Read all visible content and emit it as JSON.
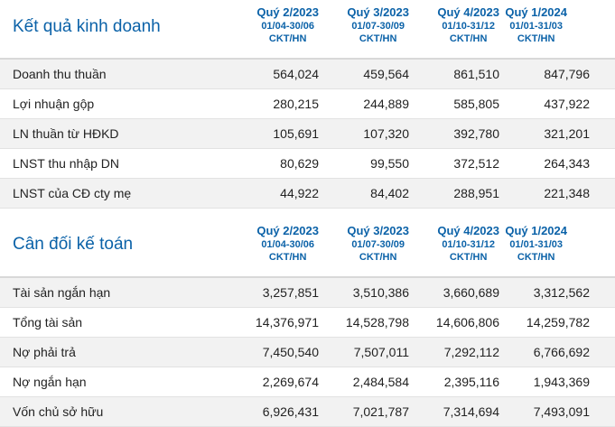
{
  "business": {
    "title": "Kết quả kinh doanh",
    "columns": [
      {
        "quarter": "Quý 2/2023",
        "range": "01/04-30/06",
        "unit": "CKT/HN"
      },
      {
        "quarter": "Quý 3/2023",
        "range": "01/07-30/09",
        "unit": "CKT/HN"
      },
      {
        "quarter": "Quý 4/2023",
        "range": "01/10-31/12",
        "unit": "CKT/HN"
      },
      {
        "quarter": "Quý 1/2024",
        "range": "01/01-31/03",
        "unit": "CKT/HN"
      }
    ],
    "rows": [
      {
        "label": "Doanh thu thuần",
        "values": [
          "564,024",
          "459,564",
          "861,510",
          "847,796"
        ]
      },
      {
        "label": "Lợi nhuận gộp",
        "values": [
          "280,215",
          "244,889",
          "585,805",
          "437,922"
        ]
      },
      {
        "label": "LN thuần từ HĐKD",
        "values": [
          "105,691",
          "107,320",
          "392,780",
          "321,201"
        ]
      },
      {
        "label": "LNST thu nhập DN",
        "values": [
          "80,629",
          "99,550",
          "372,512",
          "264,343"
        ]
      },
      {
        "label": "LNST của CĐ cty mẹ",
        "values": [
          "44,922",
          "84,402",
          "288,951",
          "221,348"
        ]
      }
    ]
  },
  "balance": {
    "title": "Cân đối kế toán",
    "columns": [
      {
        "quarter": "Quý 2/2023",
        "range": "01/04-30/06",
        "unit": "CKT/HN"
      },
      {
        "quarter": "Quý 3/2023",
        "range": "01/07-30/09",
        "unit": "CKT/HN"
      },
      {
        "quarter": "Quý 4/2023",
        "range": "01/10-31/12",
        "unit": "CKT/HN"
      },
      {
        "quarter": "Quý 1/2024",
        "range": "01/01-31/03",
        "unit": "CKT/HN"
      }
    ],
    "rows": [
      {
        "label": "Tài sản ngắn hạn",
        "values": [
          "3,257,851",
          "3,510,386",
          "3,660,689",
          "3,312,562"
        ]
      },
      {
        "label": "Tổng tài sản",
        "values": [
          "14,376,971",
          "14,528,798",
          "14,606,806",
          "14,259,782"
        ]
      },
      {
        "label": "Nợ phải trả",
        "values": [
          "7,450,540",
          "7,507,011",
          "7,292,112",
          "6,766,692"
        ]
      },
      {
        "label": "Nợ ngắn hạn",
        "values": [
          "2,269,674",
          "2,484,584",
          "2,395,116",
          "1,943,369"
        ]
      },
      {
        "label": "Vốn chủ sở hữu",
        "values": [
          "6,926,431",
          "7,021,787",
          "7,314,694",
          "7,493,091"
        ]
      }
    ]
  }
}
